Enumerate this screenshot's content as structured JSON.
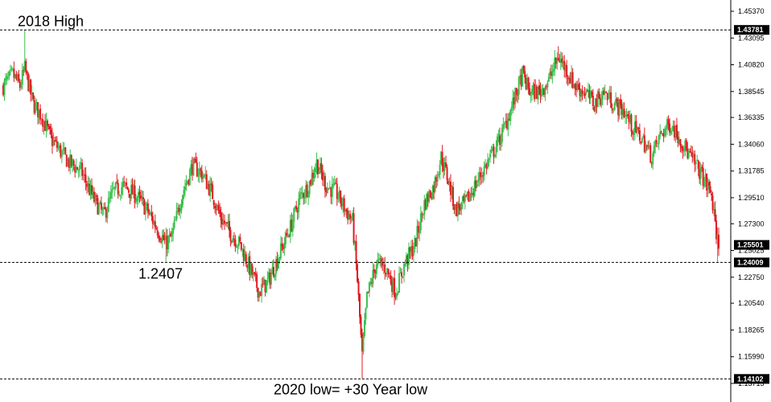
{
  "chart_data": {
    "type": "candlestick",
    "title": "",
    "xlabel": "",
    "ylabel": "",
    "ylim": [
      1.1371,
      1.4537
    ],
    "grid": false,
    "colors": {
      "up": "#3cbf4f",
      "down": "#e01b22",
      "line": "#000000",
      "tag_bg": "#000000",
      "tag_text": "#ffffff"
    },
    "y_ticks": [
      "1.45370",
      "1.43095",
      "1.40820",
      "1.38545",
      "1.36335",
      "1.34060",
      "1.31785",
      "1.29510",
      "1.27300",
      "1.25025",
      "1.22750",
      "1.20540",
      "1.18265",
      "1.15990",
      "1.13715"
    ],
    "price_tags": [
      {
        "value": 1.43781,
        "label": "1.43781"
      },
      {
        "value": 1.25501,
        "label": "1.25501"
      },
      {
        "value": 1.24009,
        "label": "1.24009"
      },
      {
        "value": 1.14102,
        "label": "1.14102"
      }
    ],
    "levels": [
      1.43781,
      1.24009,
      1.14102
    ],
    "annotations": [
      {
        "text": "2018 High",
        "price": 1.4378
      },
      {
        "text": "1.2407",
        "price": 1.2407
      },
      {
        "text": "2020 low= +30 Year low",
        "price": 1.141
      }
    ],
    "waypoints": [
      [
        0,
        1.39
      ],
      [
        8,
        1.4
      ],
      [
        14,
        1.39
      ],
      [
        18,
        1.405
      ],
      [
        25,
        1.375
      ],
      [
        32,
        1.365
      ],
      [
        40,
        1.345
      ],
      [
        55,
        1.325
      ],
      [
        65,
        1.318
      ],
      [
        75,
        1.295
      ],
      [
        84,
        1.28
      ],
      [
        92,
        1.3
      ],
      [
        100,
        1.305
      ],
      [
        110,
        1.298
      ],
      [
        120,
        1.285
      ],
      [
        128,
        1.27
      ],
      [
        136,
        1.256
      ],
      [
        141,
        1.262
      ],
      [
        150,
        1.3
      ],
      [
        158,
        1.322
      ],
      [
        166,
        1.316
      ],
      [
        174,
        1.3
      ],
      [
        182,
        1.278
      ],
      [
        190,
        1.265
      ],
      [
        198,
        1.255
      ],
      [
        206,
        1.235
      ],
      [
        214,
        1.215
      ],
      [
        222,
        1.225
      ],
      [
        232,
        1.25
      ],
      [
        240,
        1.27
      ],
      [
        248,
        1.295
      ],
      [
        255,
        1.305
      ],
      [
        262,
        1.325
      ],
      [
        270,
        1.305
      ],
      [
        278,
        1.3
      ],
      [
        286,
        1.285
      ],
      [
        292,
        1.275
      ],
      [
        296,
        1.225
      ],
      [
        300,
        1.16
      ],
      [
        304,
        1.21
      ],
      [
        312,
        1.24
      ],
      [
        320,
        1.235
      ],
      [
        328,
        1.215
      ],
      [
        336,
        1.24
      ],
      [
        344,
        1.255
      ],
      [
        352,
        1.29
      ],
      [
        360,
        1.305
      ],
      [
        366,
        1.33
      ],
      [
        372,
        1.31
      ],
      [
        378,
        1.285
      ],
      [
        386,
        1.29
      ],
      [
        394,
        1.305
      ],
      [
        402,
        1.32
      ],
      [
        410,
        1.335
      ],
      [
        418,
        1.352
      ],
      [
        426,
        1.375
      ],
      [
        434,
        1.4
      ],
      [
        440,
        1.385
      ],
      [
        448,
        1.385
      ],
      [
        456,
        1.395
      ],
      [
        464,
        1.415
      ],
      [
        470,
        1.405
      ],
      [
        478,
        1.39
      ],
      [
        486,
        1.385
      ],
      [
        494,
        1.375
      ],
      [
        502,
        1.385
      ],
      [
        510,
        1.375
      ],
      [
        518,
        1.37
      ],
      [
        526,
        1.355
      ],
      [
        534,
        1.345
      ],
      [
        542,
        1.33
      ],
      [
        550,
        1.35
      ],
      [
        558,
        1.358
      ],
      [
        566,
        1.345
      ],
      [
        574,
        1.33
      ],
      [
        582,
        1.318
      ],
      [
        588,
        1.306
      ],
      [
        592,
        1.298
      ],
      [
        595,
        1.27
      ],
      [
        598,
        1.255
      ]
    ],
    "volatility": 0.0075,
    "seed": 7
  }
}
